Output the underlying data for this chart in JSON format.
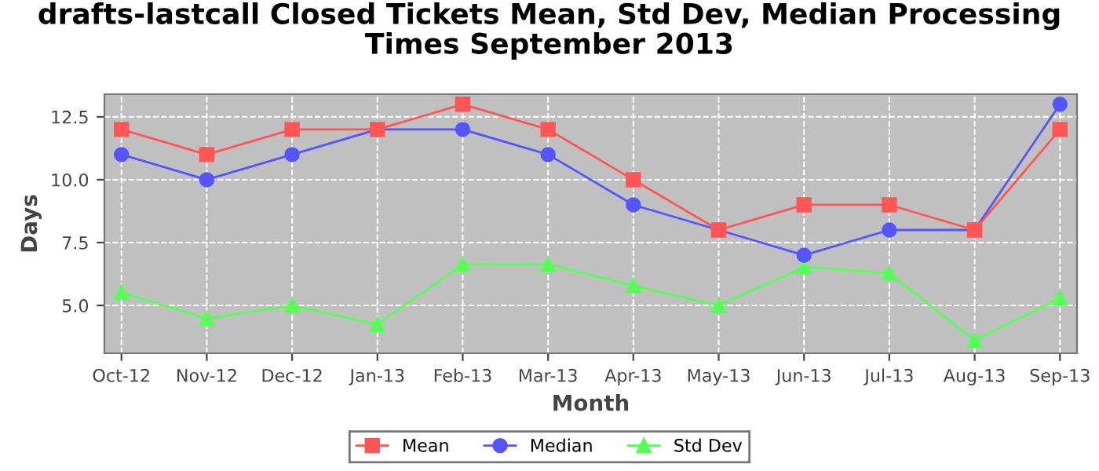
{
  "chart_data": {
    "type": "line",
    "title": "drafts-lastcall Closed Tickets Mean, Std Dev, Median Processing\nTimes September 2013",
    "xlabel": "Month",
    "ylabel": "Days",
    "categories": [
      "Oct-12",
      "Nov-12",
      "Dec-12",
      "Jan-13",
      "Feb-13",
      "Mar-13",
      "Apr-13",
      "May-13",
      "Jun-13",
      "Jul-13",
      "Aug-13",
      "Sep-13"
    ],
    "series": [
      {
        "name": "Mean",
        "color": "#ff5555",
        "marker": "square",
        "values": [
          12,
          11,
          12,
          12,
          13,
          12,
          10,
          8,
          9,
          9,
          8,
          12
        ]
      },
      {
        "name": "Median",
        "color": "#5555ff",
        "marker": "circle",
        "values": [
          11,
          10,
          11,
          12,
          12,
          11,
          9,
          8,
          7,
          8,
          8,
          13
        ]
      },
      {
        "name": "Std Dev",
        "color": "#55ff55",
        "marker": "triangle",
        "values": [
          5.52,
          4.48,
          5.0,
          4.24,
          6.63,
          6.63,
          5.79,
          5.0,
          6.53,
          6.28,
          3.62,
          5.29
        ]
      }
    ],
    "ylim": [
      3.1,
      13.4
    ],
    "yticks": [
      {
        "value": 5,
        "label": "5.0"
      },
      {
        "value": 7.5,
        "label": "7.5"
      },
      {
        "value": 10,
        "label": "10.0"
      },
      {
        "value": 12.5,
        "label": "12.5"
      }
    ],
    "grid": true,
    "legend": "bottom"
  }
}
